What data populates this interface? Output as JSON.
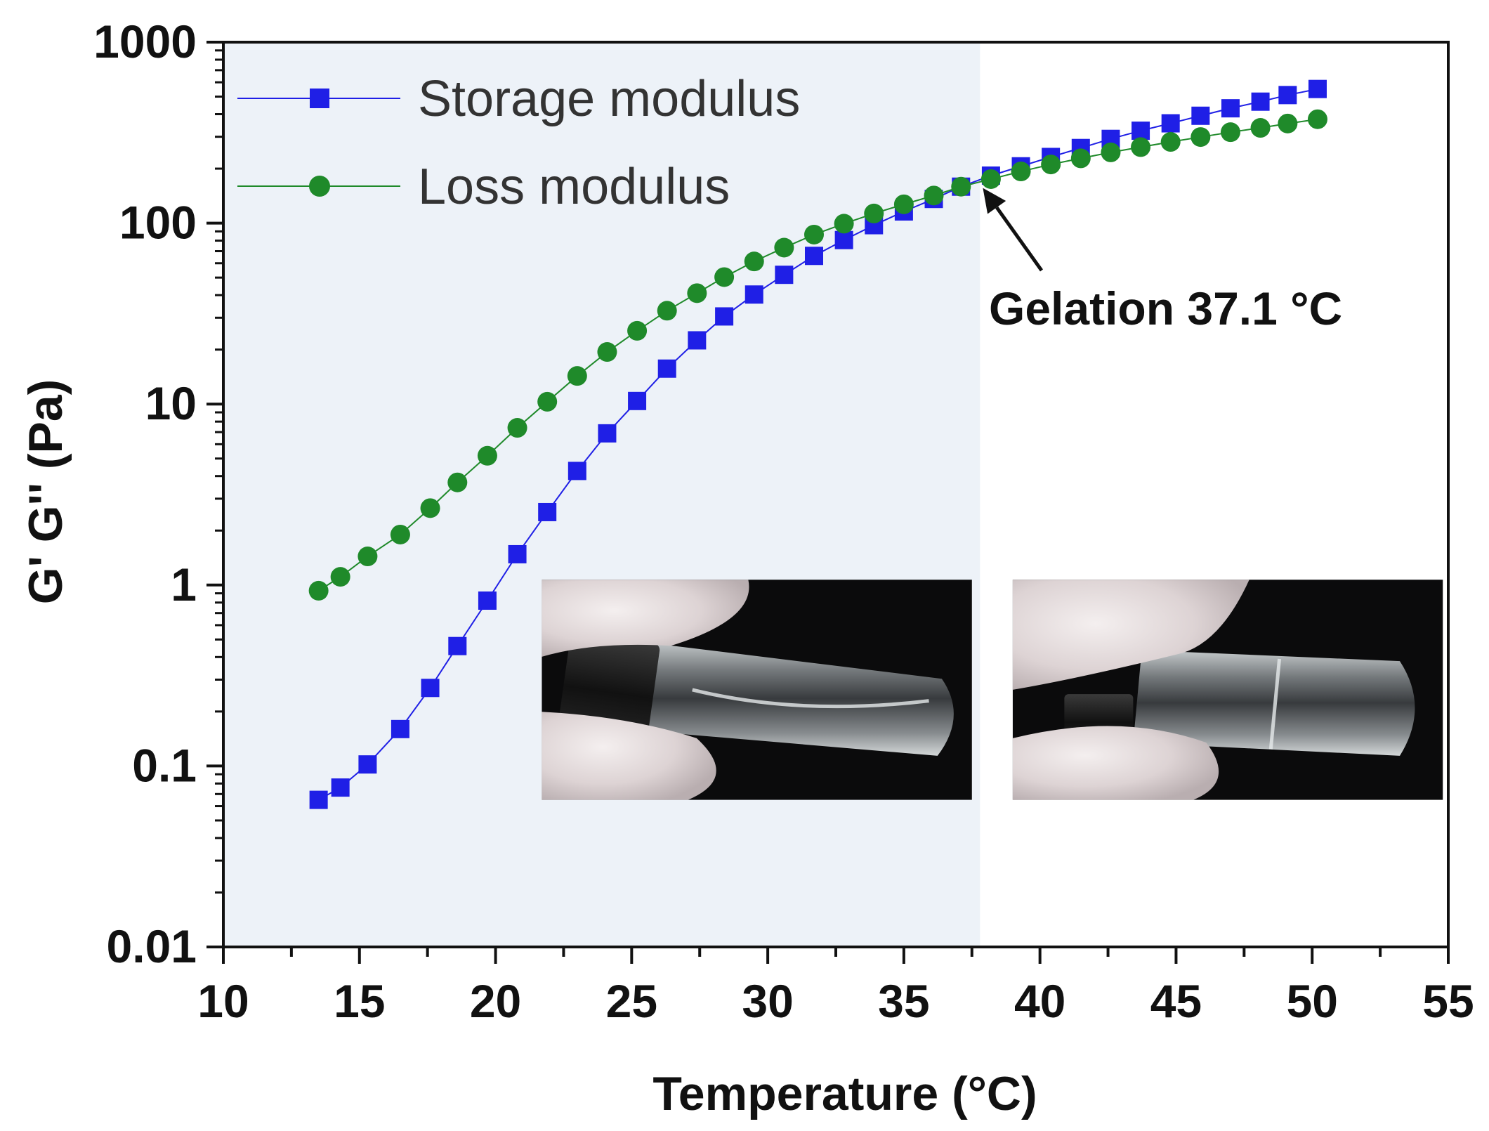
{
  "chart_data": {
    "type": "scatter",
    "xlabel": "Temperature (°C)",
    "ylabel": "G' G'' (Pa)",
    "xlim": [
      10,
      55
    ],
    "ylim": [
      0.01,
      1000
    ],
    "yscale": "log",
    "x_ticks": [
      10,
      15,
      20,
      25,
      30,
      35,
      40,
      45,
      50,
      55
    ],
    "x_tick_labels": [
      "10",
      "15",
      "20",
      "25",
      "30",
      "35",
      "40",
      "45",
      "50",
      "55"
    ],
    "y_ticks": [
      0.01,
      0.1,
      1,
      10,
      100,
      1000
    ],
    "y_tick_labels": [
      "0.01",
      "0.1",
      "1",
      "10",
      "100",
      "1000"
    ],
    "grid": false,
    "legend_position": "top-left",
    "shaded_region_x": [
      10,
      37.8
    ],
    "shaded_region_color": "#edf2f8",
    "series": [
      {
        "name": "Storage modulus",
        "marker": "square",
        "color": "#1f1fe6",
        "x": [
          13.5,
          14.3,
          15.3,
          16.5,
          17.6,
          18.6,
          19.7,
          20.8,
          21.9,
          23.0,
          24.1,
          25.2,
          26.3,
          27.4,
          28.4,
          29.5,
          30.6,
          31.7,
          32.8,
          33.9,
          35.0,
          36.1,
          37.1,
          38.2,
          39.3,
          40.4,
          41.5,
          42.6,
          43.7,
          44.8,
          45.9,
          47.0,
          48.1,
          49.1,
          50.2
        ],
        "y": [
          0.065,
          0.076,
          0.102,
          0.16,
          0.27,
          0.46,
          0.82,
          1.48,
          2.53,
          4.27,
          6.89,
          10.4,
          15.7,
          22.5,
          30.5,
          40.3,
          51.8,
          65.9,
          80.6,
          97.4,
          116,
          136,
          159,
          183,
          206,
          232,
          260,
          292,
          324,
          356,
          392,
          431,
          469,
          510,
          551
        ]
      },
      {
        "name": "Loss modulus",
        "marker": "circle",
        "color": "#1f8a2a",
        "x": [
          13.5,
          14.3,
          15.3,
          16.5,
          17.6,
          18.6,
          19.7,
          20.8,
          21.9,
          23.0,
          24.1,
          25.2,
          26.3,
          27.4,
          28.4,
          29.5,
          30.6,
          31.7,
          32.8,
          33.9,
          35.0,
          36.1,
          37.1,
          38.2,
          39.3,
          40.4,
          41.5,
          42.6,
          43.7,
          44.8,
          45.9,
          47.0,
          48.1,
          49.1,
          50.2
        ],
        "y": [
          0.93,
          1.11,
          1.44,
          1.9,
          2.66,
          3.69,
          5.18,
          7.39,
          10.3,
          14.3,
          19.4,
          25.4,
          32.8,
          41.0,
          50.3,
          61.4,
          73.2,
          86.4,
          99.3,
          113,
          127,
          142,
          159,
          175,
          193,
          211,
          228,
          246,
          263,
          281,
          299,
          318,
          336,
          355,
          375
        ]
      }
    ],
    "annotations": [
      {
        "text": "Gelation 37.1 °C",
        "points_to": {
          "x": 37.8,
          "y": 165
        }
      }
    ],
    "insets": [
      {
        "description": "photo",
        "x_range": [
          21.7,
          37.5
        ],
        "y_range": [
          0.065,
          1.07
        ]
      },
      {
        "description": "photo",
        "x_range": [
          39.0,
          54.8
        ],
        "y_range": [
          0.065,
          1.07
        ]
      }
    ]
  }
}
